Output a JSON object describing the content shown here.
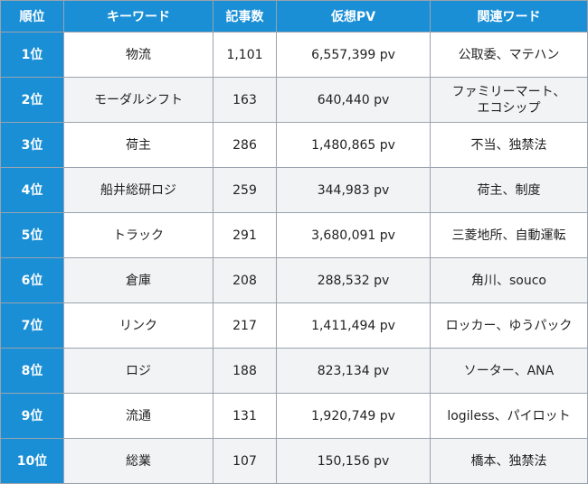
{
  "table": {
    "headers": [
      "順位",
      "キーワード",
      "記事数",
      "仮想PV",
      "関連ワード"
    ],
    "rows": [
      {
        "rank": "1位",
        "keyword": "物流",
        "count": "1,101",
        "pv": "6,557,399 pv",
        "related": "公取委、マテハン"
      },
      {
        "rank": "2位",
        "keyword": "モーダルシフト",
        "count": "163",
        "pv": "640,440 pv",
        "related": "ファミリーマート、\nエコシップ"
      },
      {
        "rank": "3位",
        "keyword": "荷主",
        "count": "286",
        "pv": "1,480,865 pv",
        "related": "不当、独禁法"
      },
      {
        "rank": "4位",
        "keyword": "船井総研ロジ",
        "count": "259",
        "pv": "344,983 pv",
        "related": "荷主、制度"
      },
      {
        "rank": "5位",
        "keyword": "トラック",
        "count": "291",
        "pv": "3,680,091 pv",
        "related": "三菱地所、自動運転"
      },
      {
        "rank": "6位",
        "keyword": "倉庫",
        "count": "208",
        "pv": "288,532 pv",
        "related": "角川、souco"
      },
      {
        "rank": "7位",
        "keyword": "リンク",
        "count": "217",
        "pv": "1,411,494 pv",
        "related": "ロッカー、ゆうパック"
      },
      {
        "rank": "8位",
        "keyword": "ロジ",
        "count": "188",
        "pv": "823,134 pv",
        "related": "ソーター、ANA"
      },
      {
        "rank": "9位",
        "keyword": "流通",
        "count": "131",
        "pv": "1,920,749 pv",
        "related": "logiless、パイロット"
      },
      {
        "rank": "10位",
        "keyword": "総業",
        "count": "107",
        "pv": "150,156 pv",
        "related": "橋本、独禁法"
      }
    ]
  }
}
